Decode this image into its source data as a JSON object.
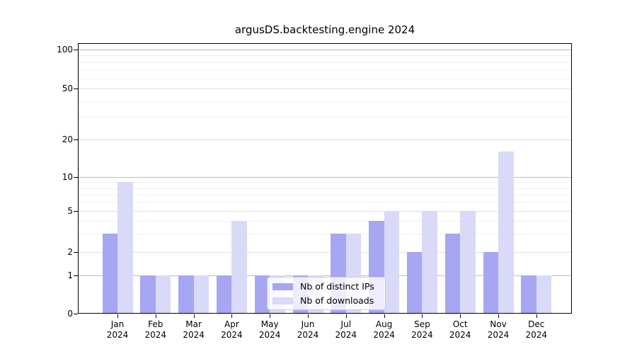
{
  "title": "argusDS.backtesting.engine 2024",
  "chart_data": {
    "type": "bar",
    "title": "argusDS.backtesting.engine 2024",
    "categories": [
      "Jan",
      "Feb",
      "Mar",
      "Apr",
      "May",
      "Jun",
      "Jul",
      "Aug",
      "Sep",
      "Oct",
      "Nov",
      "Dec"
    ],
    "year": "2024",
    "series": [
      {
        "name": "Nb of distinct IPs",
        "color": "#a6a6f2",
        "values": [
          3,
          1,
          1,
          1,
          1,
          1,
          3,
          4,
          2,
          3,
          2,
          1
        ]
      },
      {
        "name": "Nb of downloads",
        "color": "#d9d9f8",
        "values": [
          9,
          1,
          1,
          4,
          1,
          1,
          3,
          5,
          5,
          5,
          16,
          1
        ]
      }
    ],
    "yscale": "symlog",
    "ylim": [
      0,
      100
    ],
    "ytick_values": [
      0,
      1,
      2,
      5,
      10,
      20,
      50,
      100
    ],
    "ytick_labels": [
      "0",
      "1",
      "2",
      "5",
      "10",
      "20",
      "50",
      "100"
    ],
    "major_grid_values": [
      1,
      10,
      100
    ],
    "mid_grid_values": [
      2,
      5,
      20,
      50
    ],
    "minor_grid_values": [
      3,
      4,
      6,
      7,
      8,
      9,
      30,
      40,
      60,
      70,
      80,
      90
    ],
    "grid": true,
    "legend_position": "lower center",
    "xlabel": "",
    "ylabel": ""
  },
  "legend": {
    "items": [
      {
        "label": "Nb of distinct IPs",
        "color": "#a6a6f2"
      },
      {
        "label": "Nb of downloads",
        "color": "#d9d9f8"
      }
    ]
  },
  "colors": {
    "bar_distinct_ips": "#a6a6f2",
    "bar_downloads": "#d9d9f8",
    "grid_major": "#bdbdbd",
    "grid_mid": "#dfdfdf",
    "grid_minor": "#efefef",
    "axis": "#000000",
    "legend_border": "#cccccc"
  }
}
